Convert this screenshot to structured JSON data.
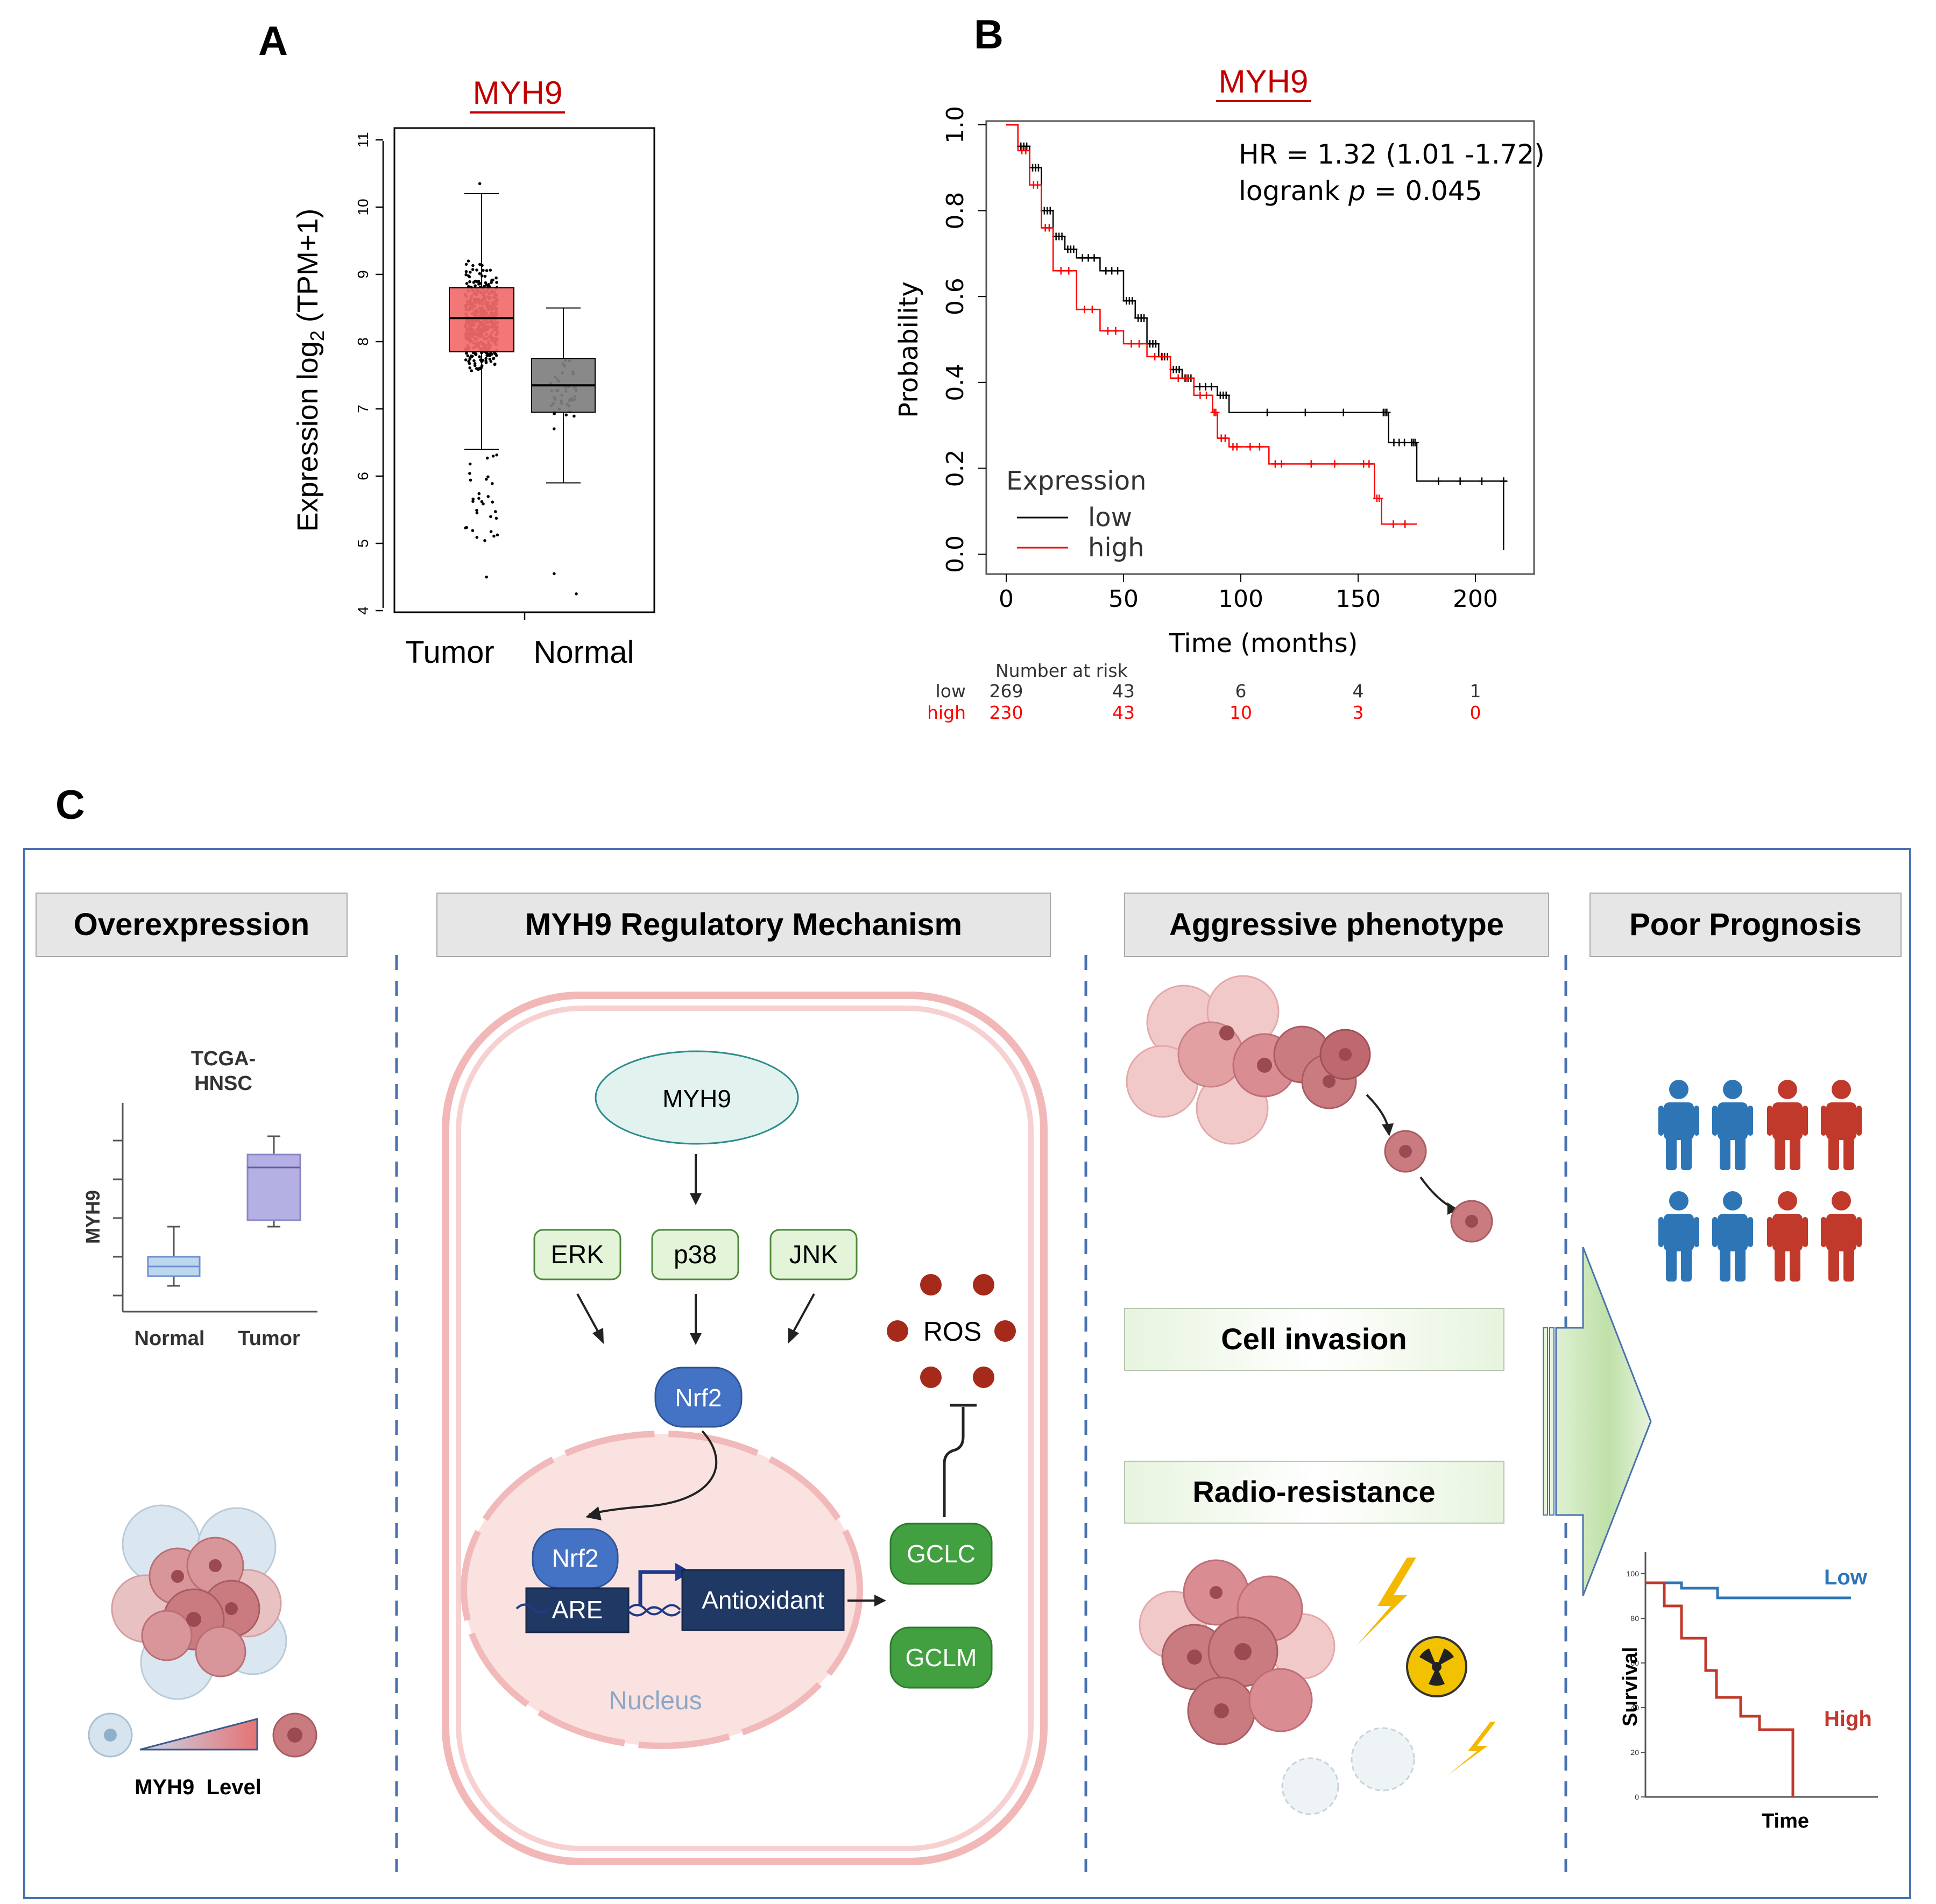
{
  "panel_a": {
    "letter": "A",
    "gene": "MYH9",
    "ylabel_prefix": "Expression  log",
    "ylabel_sub": "2",
    "ylabel_suffix": " (TPM+1)",
    "yticks": [
      "4",
      "5",
      "6",
      "7",
      "8",
      "9",
      "10",
      "11"
    ],
    "groups": [
      "Tumor",
      "Normal"
    ]
  },
  "panel_b": {
    "letter": "B",
    "gene": "MYH9",
    "hr_text": "HR = 1.32 (1.01 -1.72)",
    "logrank_prefix": "logrank  ",
    "logrank_p": "p",
    "logrank_suffix": " = 0.045",
    "ylabel": "Probability",
    "xlabel": "Time (months)",
    "yticks": [
      "0.0",
      "0.2",
      "0.4",
      "0.6",
      "0.8",
      "1.0"
    ],
    "xticks": [
      "0",
      "50",
      "100",
      "150",
      "200"
    ],
    "legend_title": "Expression",
    "legend_low": "low",
    "legend_high": "high",
    "risk_title": "Number at risk",
    "risk_low_label": "low",
    "risk_high_label": "high",
    "risk_low": [
      "269",
      "43",
      "6",
      "4",
      "1"
    ],
    "risk_high": [
      "230",
      "43",
      "10",
      "3",
      "0"
    ]
  },
  "panel_c": {
    "letter": "C",
    "headers": [
      "Overexpression",
      "MYH9 Regulatory Mechanism",
      "Aggressive phenotype",
      "Poor Prognosis"
    ],
    "mini_box": {
      "title_line1": "TCGA-",
      "title_line2": "HNSC",
      "ylabel": "MYH9",
      "groups": [
        "Normal",
        "Tumor"
      ]
    },
    "level_label": "MYH9  Level",
    "pathway": {
      "myh9": "MYH9",
      "erk": "ERK",
      "p38": "p38",
      "jnk": "JNK",
      "nrf2_cyto": "Nrf2",
      "nrf2_nuc": "Nrf2",
      "are": "ARE",
      "antioxidant": "Antioxidant",
      "nucleus": "Nucleus",
      "ros": "ROS",
      "gclc": "GCLC",
      "gclm": "GCLM"
    },
    "phenotypes": [
      "Cell invasion",
      "Radio-resistance"
    ],
    "mini_survival": {
      "ylabel": "Survival",
      "xlabel": "Time",
      "low": "Low",
      "high": "High",
      "yticks": [
        "100",
        "80",
        "60",
        "40",
        "20",
        "0"
      ]
    }
  },
  "colors": {
    "gene_red": "#c00000",
    "tumor_box": "#f36b6b",
    "normal_box": "#7f7f7f",
    "km_high": "#ff0000",
    "km_low": "#000000",
    "frame_blue": "#4a72b0",
    "header_gray": "#e6e6e6",
    "mapk_green": "#e3f4d9",
    "gcl_green": "#42a040",
    "nrf2_blue": "#4472c4",
    "dark_navy": "#1f3864",
    "ros_red": "#a52a1a",
    "person_blue": "#2e75b6",
    "person_red": "#c0392b"
  },
  "chart_data": [
    {
      "type": "box",
      "title": "MYH9",
      "ylabel": "Expression log2 (TPM+1)",
      "categories": [
        "Tumor",
        "Normal"
      ],
      "ylim": [
        4,
        11
      ],
      "boxes": [
        {
          "name": "Tumor",
          "q1": 7.85,
          "median": 8.35,
          "q3": 8.8,
          "whisker_low": 6.4,
          "whisker_high": 10.2,
          "color": "#f36b6b"
        },
        {
          "name": "Normal",
          "q1": 6.95,
          "median": 7.35,
          "q3": 7.75,
          "whisker_low": 5.9,
          "whisker_high": 8.5,
          "color": "#7f7f7f"
        }
      ]
    },
    {
      "type": "line",
      "subtype": "kaplan-meier",
      "title": "MYH9",
      "xlabel": "Time (months)",
      "ylabel": "Probability",
      "xlim": [
        0,
        215
      ],
      "ylim": [
        0,
        1
      ],
      "series": [
        {
          "name": "low",
          "color": "#000000",
          "x": [
            0,
            5,
            10,
            15,
            20,
            25,
            30,
            40,
            50,
            55,
            60,
            65,
            70,
            75,
            80,
            90,
            95,
            160,
            163,
            172,
            175,
            212,
            212
          ],
          "y": [
            1.0,
            0.95,
            0.9,
            0.8,
            0.74,
            0.71,
            0.69,
            0.66,
            0.59,
            0.55,
            0.49,
            0.46,
            0.43,
            0.41,
            0.39,
            0.37,
            0.33,
            0.33,
            0.26,
            0.26,
            0.17,
            0.17,
            0.01
          ]
        },
        {
          "name": "high",
          "color": "#ff0000",
          "x": [
            0,
            5,
            10,
            15,
            20,
            30,
            40,
            50,
            60,
            70,
            80,
            88,
            90,
            95,
            100,
            112,
            120,
            150,
            157,
            160,
            175
          ],
          "y": [
            1.0,
            0.94,
            0.86,
            0.76,
            0.66,
            0.57,
            0.52,
            0.49,
            0.46,
            0.41,
            0.37,
            0.33,
            0.27,
            0.25,
            0.25,
            0.21,
            0.21,
            0.21,
            0.13,
            0.07,
            0.07
          ]
        }
      ]
    },
    {
      "type": "box",
      "title": "TCGA-HNSC",
      "ylabel": "MYH9",
      "categories": [
        "Normal",
        "Tumor"
      ],
      "boxes": [
        {
          "name": "Normal",
          "q1": 0.45,
          "median": 0.5,
          "q3": 0.55,
          "whisker_low": 0.38,
          "whisker_high": 0.72
        },
        {
          "name": "Tumor",
          "q1": 0.8,
          "median": 0.98,
          "q3": 1.05,
          "whisker_low": 0.78,
          "whisker_high": 1.15
        }
      ]
    },
    {
      "type": "line",
      "subtype": "kaplan-meier",
      "xlabel": "Time",
      "ylabel": "Survival",
      "ylim": [
        0,
        100
      ],
      "series": [
        {
          "name": "Low",
          "x": [
            0,
            1,
            2,
            3,
            10
          ],
          "y": [
            95,
            93,
            90,
            87,
            87
          ]
        },
        {
          "name": "High",
          "x": [
            0,
            1,
            2,
            3,
            4,
            5,
            6,
            7,
            8
          ],
          "y": [
            95,
            85,
            72,
            58,
            46,
            35,
            28,
            28,
            0
          ]
        }
      ]
    }
  ]
}
